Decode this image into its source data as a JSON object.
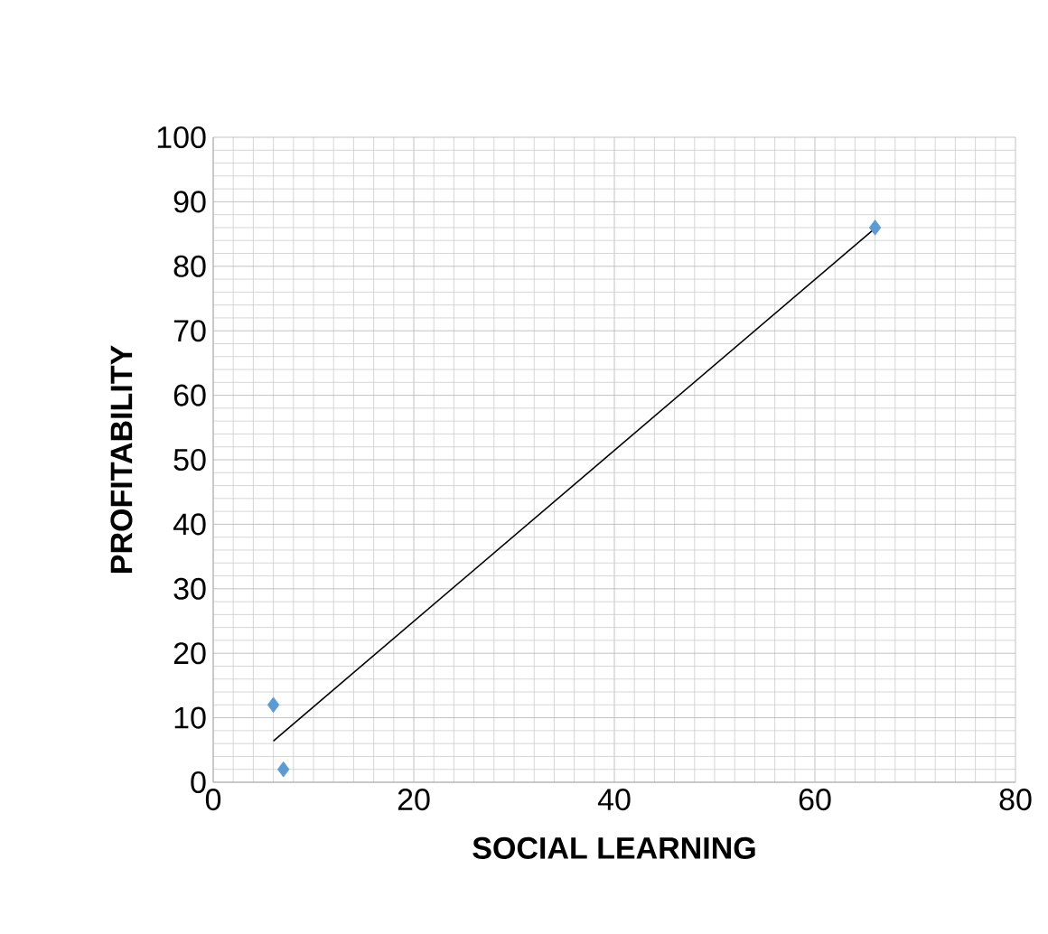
{
  "chart_data": {
    "type": "scatter",
    "xlabel": "SOCIAL LEARNING",
    "ylabel": "PROFITABILITY",
    "x": [
      6,
      7,
      66
    ],
    "series": [
      {
        "color": "#5b9bd5",
        "values": [
          12,
          2,
          86
        ],
        "marker": "diamond"
      },
      {
        "type": "line",
        "color": "#000000",
        "x": [
          6,
          66
        ],
        "values": [
          6.4,
          85.9
        ],
        "marker": "none",
        "line_style": "solid"
      }
    ],
    "xlim": [
      0,
      80
    ],
    "xticks": [
      0,
      20,
      40,
      60,
      80
    ],
    "ylim": [
      0,
      100
    ],
    "yticks": [
      0,
      10,
      20,
      30,
      40,
      50,
      60,
      70,
      80,
      90,
      100
    ],
    "grid": true
  }
}
